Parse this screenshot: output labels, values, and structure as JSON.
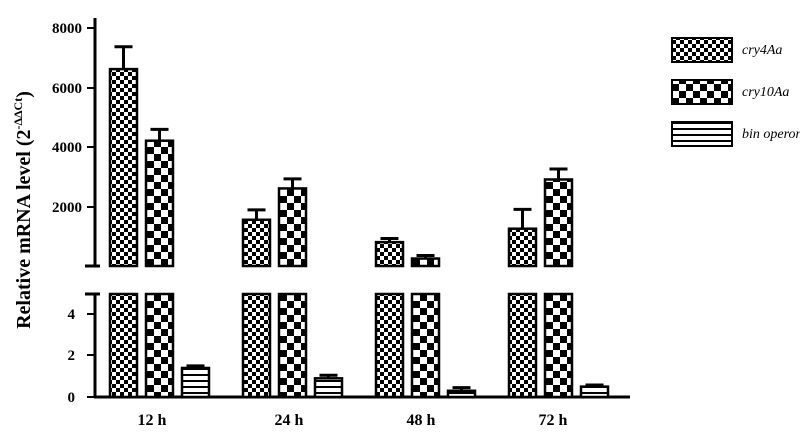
{
  "chart_data": {
    "type": "bar",
    "title": "",
    "xlabel": "",
    "ylabel": "Relative mRNA level (2",
    "ylabel_sup": "-ΔΔCt",
    "ylabel_close": ")",
    "categories": [
      "12 h",
      "24 h",
      "48 h",
      "72 h"
    ],
    "series": [
      {
        "name": "cry4Aa",
        "values": [
          6600,
          1550,
          800,
          1250
        ],
        "errors": [
          750,
          330,
          120,
          650
        ],
        "pattern": "checker-fine"
      },
      {
        "name": "cry10Aa",
        "values": [
          4200,
          2600,
          250,
          2900
        ],
        "errors": [
          380,
          320,
          100,
          350
        ],
        "pattern": "checker-coarse"
      },
      {
        "name": "bin operon",
        "values": [
          1.4,
          0.9,
          0.3,
          0.5
        ],
        "errors": [
          0.1,
          0.15,
          0.15,
          0.08
        ],
        "pattern": "horizontal-lines"
      }
    ],
    "y_axis_break": true,
    "ylim_lower": [
      0,
      5
    ],
    "ylim_upper": [
      0,
      8000
    ],
    "yticks_lower": [
      "0",
      "2",
      "4"
    ],
    "yticks_upper": [
      "2000",
      "4000",
      "6000",
      "8000"
    ],
    "legend_position": "top-right",
    "grid": false
  }
}
